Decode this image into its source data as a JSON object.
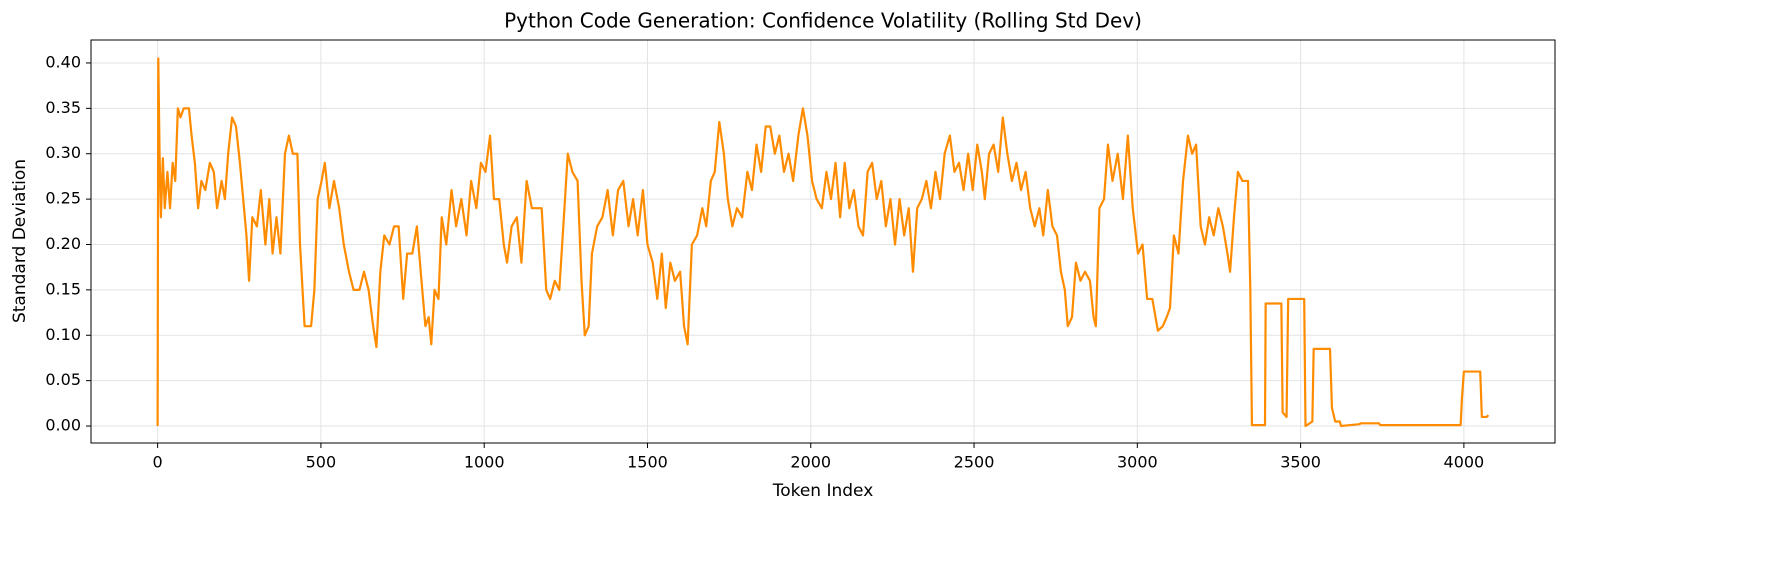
{
  "chart_data": {
    "type": "line",
    "title": "Python Code Generation: Confidence Volatility (Rolling Std Dev)",
    "xlabel": "Token Index",
    "ylabel": "Standard Deviation",
    "color": "#ff8c00",
    "grid": true,
    "xlim": [
      -204,
      4279
    ],
    "ylim": [
      -0.0187,
      0.4253
    ],
    "xticks": [
      0,
      500,
      1000,
      1500,
      2000,
      2500,
      3000,
      3500,
      4000
    ],
    "yticks": [
      {
        "value": 0,
        "label": "0.00"
      },
      {
        "value": 0.05,
        "label": "0.05"
      },
      {
        "value": 0.1,
        "label": "0.10"
      },
      {
        "value": 0.15,
        "label": "0.15"
      },
      {
        "value": 0.2,
        "label": "0.20"
      },
      {
        "value": 0.25,
        "label": "0.25"
      },
      {
        "value": 0.3,
        "label": "0.30"
      },
      {
        "value": 0.35,
        "label": "0.35"
      },
      {
        "value": 0.4,
        "label": "0.40"
      }
    ],
    "x": [
      0,
      2,
      6,
      10,
      16,
      22,
      30,
      38,
      46,
      54,
      62,
      70,
      80,
      96,
      104,
      114,
      124,
      134,
      146,
      160,
      172,
      182,
      196,
      206,
      216,
      228,
      240,
      252,
      262,
      272,
      280,
      290,
      304,
      316,
      330,
      342,
      352,
      364,
      376,
      390,
      402,
      414,
      428,
      436,
      450,
      470,
      480,
      490,
      502,
      512,
      526,
      540,
      556,
      570,
      586,
      600,
      618,
      632,
      646,
      660,
      670,
      682,
      694,
      710,
      724,
      738,
      752,
      764,
      780,
      794,
      808,
      820,
      830,
      838,
      848,
      860,
      870,
      884,
      900,
      914,
      930,
      946,
      960,
      976,
      990,
      1004,
      1018,
      1030,
      1046,
      1060,
      1070,
      1084,
      1100,
      1114,
      1130,
      1146,
      1160,
      1176,
      1190,
      1202,
      1216,
      1230,
      1244,
      1256,
      1270,
      1286,
      1298,
      1308,
      1320,
      1330,
      1346,
      1362,
      1378,
      1394,
      1410,
      1426,
      1442,
      1456,
      1470,
      1486,
      1500,
      1516,
      1530,
      1544,
      1556,
      1570,
      1584,
      1600,
      1612,
      1623,
      1636,
      1652,
      1668,
      1680,
      1694,
      1706,
      1720,
      1734,
      1746,
      1760,
      1774,
      1790,
      1806,
      1820,
      1834,
      1848,
      1862,
      1876,
      1890,
      1904,
      1918,
      1932,
      1946,
      1962,
      1976,
      1990,
      2004,
      2018,
      2034,
      2048,
      2062,
      2076,
      2090,
      2104,
      2118,
      2132,
      2146,
      2160,
      2174,
      2188,
      2202,
      2216,
      2230,
      2244,
      2258,
      2272,
      2286,
      2300,
      2313,
      2326,
      2340,
      2354,
      2368,
      2382,
      2396,
      2410,
      2426,
      2440,
      2454,
      2468,
      2482,
      2496,
      2510,
      2524,
      2533,
      2546,
      2560,
      2574,
      2588,
      2602,
      2616,
      2630,
      2644,
      2658,
      2672,
      2686,
      2700,
      2712,
      2726,
      2740,
      2754,
      2766,
      2778,
      2787,
      2800,
      2812,
      2826,
      2840,
      2855,
      2866,
      2873,
      2884,
      2898,
      2910,
      2924,
      2940,
      2956,
      2971,
      2986,
      3002,
      3016,
      3030,
      3046,
      3063,
      3078,
      3090,
      3100,
      3112,
      3126,
      3140,
      3155,
      3168,
      3180,
      3194,
      3207,
      3220,
      3234,
      3248,
      3262,
      3276,
      3284,
      3296,
      3308,
      3322,
      3339,
      3346,
      3351,
      3391,
      3393,
      3441,
      3445,
      3457,
      3462,
      3511,
      3515,
      3536,
      3540,
      3590,
      3596,
      3606,
      3620,
      3624,
      3680,
      3684,
      3740,
      3744,
      3990,
      3994,
      4000,
      4050,
      4055,
      4070,
      4075
    ],
    "values": [
      0,
      0.405,
      0.3,
      0.23,
      0.295,
      0.24,
      0.28,
      0.24,
      0.29,
      0.27,
      0.35,
      0.34,
      0.35,
      0.35,
      0.32,
      0.29,
      0.24,
      0.27,
      0.26,
      0.29,
      0.28,
      0.24,
      0.27,
      0.25,
      0.3,
      0.34,
      0.33,
      0.29,
      0.25,
      0.21,
      0.16,
      0.23,
      0.22,
      0.26,
      0.2,
      0.25,
      0.19,
      0.23,
      0.19,
      0.3,
      0.32,
      0.3,
      0.3,
      0.2,
      0.11,
      0.11,
      0.15,
      0.25,
      0.27,
      0.29,
      0.24,
      0.27,
      0.24,
      0.2,
      0.17,
      0.15,
      0.15,
      0.17,
      0.15,
      0.11,
      0.087,
      0.17,
      0.21,
      0.2,
      0.22,
      0.22,
      0.14,
      0.19,
      0.19,
      0.22,
      0.16,
      0.11,
      0.12,
      0.09,
      0.15,
      0.14,
      0.23,
      0.2,
      0.26,
      0.22,
      0.25,
      0.21,
      0.27,
      0.24,
      0.29,
      0.28,
      0.32,
      0.25,
      0.25,
      0.2,
      0.18,
      0.22,
      0.23,
      0.18,
      0.27,
      0.24,
      0.24,
      0.24,
      0.15,
      0.14,
      0.16,
      0.15,
      0.23,
      0.3,
      0.28,
      0.27,
      0.16,
      0.1,
      0.11,
      0.19,
      0.22,
      0.23,
      0.26,
      0.21,
      0.26,
      0.27,
      0.22,
      0.25,
      0.21,
      0.26,
      0.2,
      0.18,
      0.14,
      0.19,
      0.13,
      0.18,
      0.16,
      0.17,
      0.11,
      0.09,
      0.2,
      0.21,
      0.24,
      0.22,
      0.27,
      0.28,
      0.335,
      0.3,
      0.25,
      0.22,
      0.24,
      0.23,
      0.28,
      0.26,
      0.31,
      0.28,
      0.33,
      0.33,
      0.3,
      0.32,
      0.28,
      0.3,
      0.27,
      0.32,
      0.35,
      0.32,
      0.27,
      0.25,
      0.24,
      0.28,
      0.25,
      0.29,
      0.23,
      0.29,
      0.24,
      0.26,
      0.22,
      0.21,
      0.28,
      0.29,
      0.25,
      0.27,
      0.22,
      0.25,
      0.2,
      0.25,
      0.21,
      0.24,
      0.17,
      0.24,
      0.25,
      0.27,
      0.24,
      0.28,
      0.25,
      0.3,
      0.32,
      0.28,
      0.29,
      0.26,
      0.3,
      0.26,
      0.31,
      0.28,
      0.25,
      0.3,
      0.31,
      0.28,
      0.34,
      0.3,
      0.27,
      0.29,
      0.26,
      0.28,
      0.24,
      0.22,
      0.24,
      0.21,
      0.26,
      0.22,
      0.21,
      0.17,
      0.15,
      0.11,
      0.12,
      0.18,
      0.16,
      0.17,
      0.16,
      0.12,
      0.11,
      0.24,
      0.25,
      0.31,
      0.27,
      0.3,
      0.25,
      0.32,
      0.24,
      0.19,
      0.2,
      0.14,
      0.14,
      0.105,
      0.11,
      0.12,
      0.13,
      0.21,
      0.19,
      0.27,
      0.32,
      0.3,
      0.31,
      0.22,
      0.2,
      0.23,
      0.21,
      0.24,
      0.22,
      0.19,
      0.17,
      0.23,
      0.28,
      0.27,
      0.27,
      0.15,
      0.001,
      0.001,
      0.135,
      0.135,
      0.015,
      0.01,
      0.14,
      0.14,
      0,
      0.005,
      0.085,
      0.085,
      0.02,
      0.005,
      0.005,
      0,
      0.002,
      0.003,
      0.003,
      0.001,
      0.001,
      0.03,
      0.06,
      0.06,
      0.01,
      0.01,
      0.012
    ]
  }
}
